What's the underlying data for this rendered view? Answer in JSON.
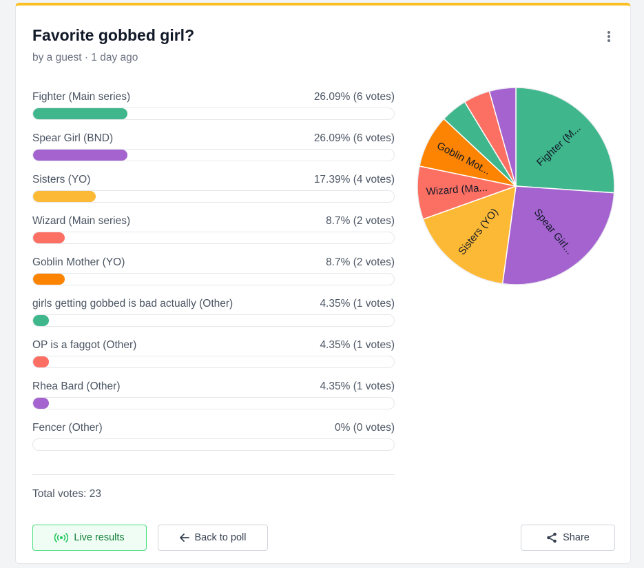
{
  "poll": {
    "title": "Favorite gobbed girl?",
    "meta": "by a guest · 1 day ago",
    "options": [
      {
        "label": "Fighter (Main series)",
        "value_text": "26.09% (6 votes)",
        "percent": 26.09,
        "color": "#3fb68b",
        "pie_label": "Fighter (M..."
      },
      {
        "label": "Spear Girl (BND)",
        "value_text": "26.09% (6 votes)",
        "percent": 26.09,
        "color": "#a463cf",
        "pie_label": "Spear Girl..."
      },
      {
        "label": "Sisters (YO)",
        "value_text": "17.39% (4 votes)",
        "percent": 17.39,
        "color": "#fcb935",
        "pie_label": "Sisters (YO)"
      },
      {
        "label": "Wizard (Main series)",
        "value_text": "8.7% (2 votes)",
        "percent": 8.7,
        "color": "#fc6f63",
        "pie_label": "Wizard (Ma..."
      },
      {
        "label": "Goblin Mother (YO)",
        "value_text": "8.7% (2 votes)",
        "percent": 8.7,
        "color": "#fc8402",
        "pie_label": "Goblin Mot..."
      },
      {
        "label": "girls getting gobbed is bad actually (Other)",
        "value_text": "4.35% (1 votes)",
        "percent": 4.35,
        "color": "#3fb68b",
        "pie_label": ""
      },
      {
        "label": "OP is a faggot (Other)",
        "value_text": "4.35% (1 votes)",
        "percent": 4.35,
        "color": "#fc6f63",
        "pie_label": ""
      },
      {
        "label": "Rhea Bard (Other)",
        "value_text": "4.35% (1 votes)",
        "percent": 4.35,
        "color": "#a463cf",
        "pie_label": ""
      },
      {
        "label": "Fencer (Other)",
        "value_text": "0% (0 votes)",
        "percent": 0,
        "color": "#cccccc",
        "pie_label": ""
      }
    ],
    "total": "Total votes: 23"
  },
  "buttons": {
    "live": "Live results",
    "back": "Back to poll",
    "share": "Share"
  },
  "icons": {
    "menu": "more-vertical-icon",
    "live": "broadcast-icon",
    "back": "arrow-left-icon",
    "share": "share-icon"
  },
  "colors": {
    "accent_top": "#fbbf24",
    "live_border": "#4ade80",
    "live_text": "#15803d"
  }
}
